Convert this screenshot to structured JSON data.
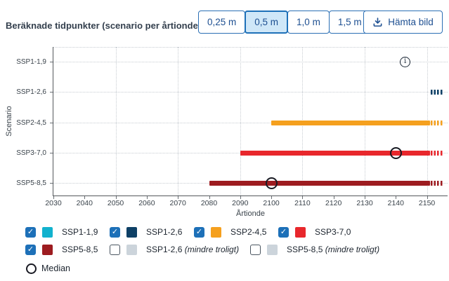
{
  "header": {
    "title": "Beräknade tidpunkter (scenario per årtionde)",
    "size_buttons": [
      {
        "label": "0,25 m",
        "selected": false
      },
      {
        "label": "0,5 m",
        "selected": true
      },
      {
        "label": "1,0 m",
        "selected": false
      },
      {
        "label": "1,5 m",
        "selected": false
      }
    ],
    "download_button_label": "Hämta bild"
  },
  "chart_data": {
    "type": "bar",
    "subtype": "horizontal-range-timeline",
    "title": "Beräknade tidpunkter (scenario per årtionde)",
    "xlabel": "Årtionde",
    "ylabel": "Scenario",
    "xlim": [
      2030,
      2156
    ],
    "x_ticks": [
      2030,
      2040,
      2050,
      2060,
      2070,
      2080,
      2090,
      2100,
      2110,
      2120,
      2130,
      2140,
      2150
    ],
    "x_gridlines": [
      2050,
      2070,
      2090,
      2110,
      2130,
      2150
    ],
    "grid": "dotted",
    "categories": [
      "SSP1-1,9",
      "SSP1-2,6",
      "SSP2-4,5",
      "SSP3-7,0",
      "SSP5-8,5"
    ],
    "series": [
      {
        "name": "SSP1-1,9",
        "color": "#12b2ce",
        "bar": null,
        "beyond_2150_dashes": false,
        "median": null,
        "info_marker_year": 2143
      },
      {
        "name": "SSP1-2,6",
        "color": "#0e4066",
        "bar": null,
        "beyond_2150_dashes": true,
        "median": null,
        "info_marker_year": null
      },
      {
        "name": "SSP2-4,5",
        "color": "#f5a01e",
        "bar": {
          "start": 2100,
          "end": 2151
        },
        "beyond_2150_dashes": true,
        "median": null,
        "info_marker_year": null
      },
      {
        "name": "SSP3-7,0",
        "color": "#e8272c",
        "bar": {
          "start": 2090,
          "end": 2151
        },
        "beyond_2150_dashes": true,
        "median": 2140,
        "info_marker_year": null
      },
      {
        "name": "SSP5-8,5",
        "color": "#9d1c20",
        "bar": {
          "start": 2080,
          "end": 2151
        },
        "beyond_2150_dashes": true,
        "median": 2100,
        "info_marker_year": null
      }
    ]
  },
  "legend": {
    "items": [
      {
        "label": "SSP1-1,9",
        "suffix": "",
        "color": "#12b2ce",
        "checked": true,
        "row": 0
      },
      {
        "label": "SSP1-2,6",
        "suffix": "",
        "color": "#0e4066",
        "checked": true,
        "row": 0
      },
      {
        "label": "SSP2-4,5",
        "suffix": "",
        "color": "#f5a01e",
        "checked": true,
        "row": 0
      },
      {
        "label": "SSP3-7,0",
        "suffix": "",
        "color": "#e8272c",
        "checked": true,
        "row": 0
      },
      {
        "label": "SSP5-8,5",
        "suffix": "",
        "color": "#9d1c20",
        "checked": true,
        "row": 1
      },
      {
        "label": "SSP1-2,6",
        "suffix": "(mindre troligt)",
        "color": "#ccd4db",
        "checked": false,
        "row": 1
      },
      {
        "label": "SSP5-8,5",
        "suffix": "(mindre troligt)",
        "color": "#ccd4db",
        "checked": false,
        "row": 1
      }
    ],
    "median_label": "Median"
  },
  "colors": {
    "accent": "#1d70b8",
    "button_text": "#1d4f91",
    "selected_button_bg": "#cfe7f8",
    "grid": "#c7ccd1",
    "axis": "#54585c"
  }
}
